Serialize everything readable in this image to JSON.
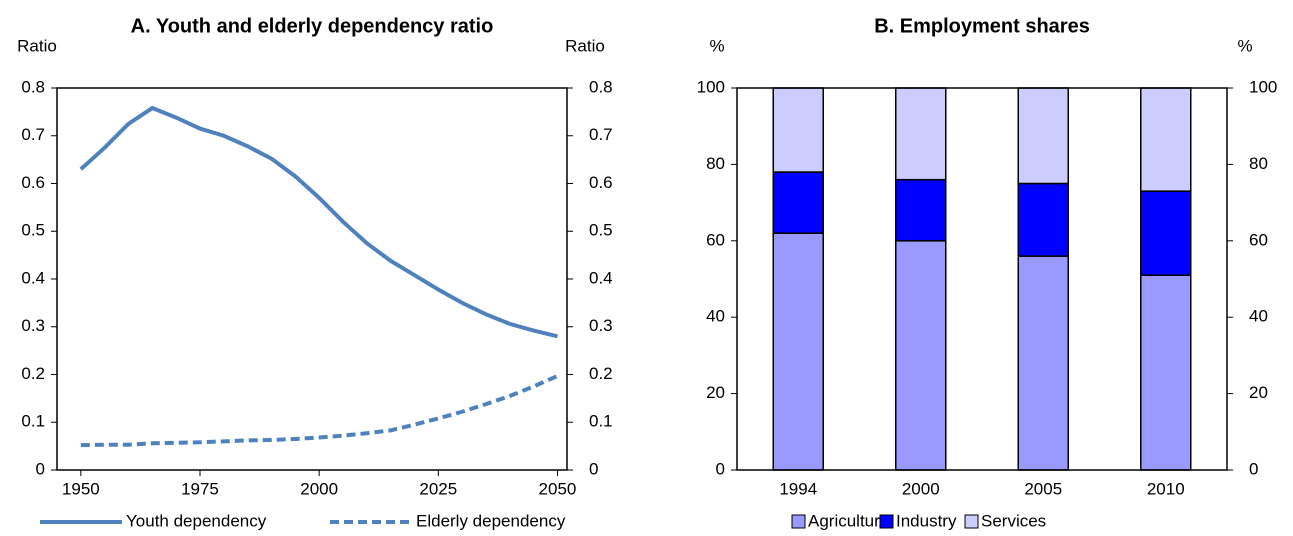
{
  "chart_data": [
    {
      "type": "line",
      "title": "A. Youth and elderly dependency ratio",
      "y_label": "Ratio",
      "y2_label": "Ratio",
      "x": [
        1950,
        1955,
        1960,
        1965,
        1970,
        1975,
        1980,
        1985,
        1990,
        1995,
        2000,
        2005,
        2010,
        2015,
        2020,
        2025,
        2030,
        2035,
        2040,
        2045,
        2050
      ],
      "series": [
        {
          "name": "Youth dependency",
          "color": "#4f81bd",
          "dash": false,
          "values": [
            0.63,
            0.675,
            0.725,
            0.758,
            0.738,
            0.715,
            0.7,
            0.678,
            0.652,
            0.615,
            0.57,
            0.52,
            0.475,
            0.438,
            0.408,
            0.378,
            0.35,
            0.326,
            0.306,
            0.292,
            0.28
          ]
        },
        {
          "name": "Elderly dependency",
          "color": "#4f81bd",
          "dash": true,
          "values": [
            0.052,
            0.053,
            0.053,
            0.056,
            0.057,
            0.058,
            0.06,
            0.062,
            0.063,
            0.065,
            0.068,
            0.072,
            0.077,
            0.083,
            0.095,
            0.108,
            0.122,
            0.138,
            0.155,
            0.175,
            0.197
          ]
        }
      ],
      "xlim": [
        1945,
        2052
      ],
      "xticks": [
        1950,
        1975,
        2000,
        2025,
        2050
      ],
      "ylim": [
        0,
        0.8
      ],
      "yticks": [
        0,
        0.1,
        0.2,
        0.3,
        0.4,
        0.5,
        0.6,
        0.7,
        0.8
      ],
      "y2lim": [
        0,
        0.8
      ],
      "y2ticks": [
        0,
        0.1,
        0.2,
        0.3,
        0.4,
        0.5,
        0.6,
        0.7,
        0.8
      ]
    },
    {
      "type": "stacked_bar",
      "title": "B. Employment shares",
      "y_label": "%",
      "y2_label": "%",
      "categories": [
        "1994",
        "2000",
        "2005",
        "2010"
      ],
      "series": [
        {
          "name": "Agriculture",
          "color": "#9999ff",
          "values": [
            62,
            60,
            56,
            51
          ]
        },
        {
          "name": "Industry",
          "color": "#0000ff",
          "values": [
            16,
            16,
            19,
            22
          ]
        },
        {
          "name": "Services",
          "color": "#ccccff",
          "values": [
            22,
            24,
            25,
            27
          ]
        }
      ],
      "ylim": [
        0,
        100
      ],
      "yticks": [
        0,
        20,
        40,
        60,
        80,
        100
      ],
      "y2lim": [
        0,
        100
      ],
      "y2ticks": [
        0,
        20,
        40,
        60,
        80,
        100
      ]
    }
  ]
}
